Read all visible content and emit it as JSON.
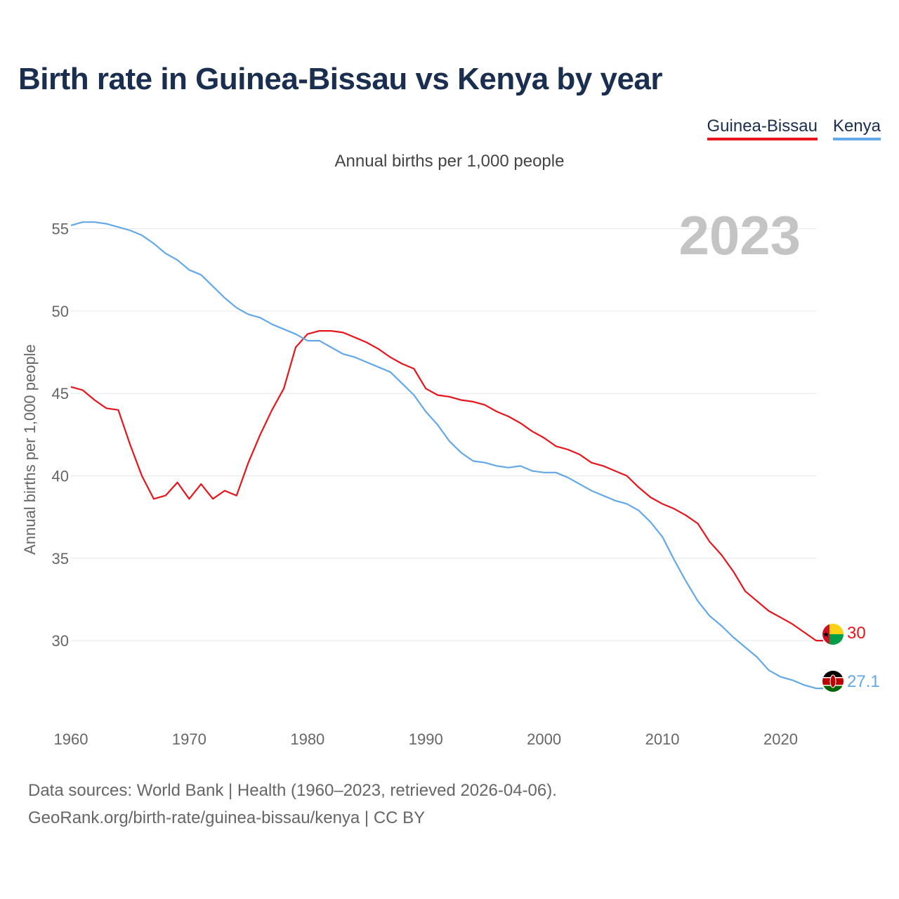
{
  "title": "Birth rate in Guinea-Bissau vs Kenya by year",
  "subtitle": "Annual births per 1,000 people",
  "year_watermark": "2023",
  "legend": [
    {
      "name": "Guinea-Bissau",
      "color": "#e8141c"
    },
    {
      "name": "Kenya",
      "color": "#63a8e8"
    }
  ],
  "source": {
    "line1": "Data sources: World Bank | Health (1960–2023, retrieved 2026-04-06).",
    "line2": "GeoRank.org/birth-rate/guinea-bissau/kenya | CC BY"
  },
  "chart_data": {
    "type": "line",
    "title": "Birth rate in Guinea-Bissau vs Kenya by year",
    "xlabel": "",
    "ylabel": "Annual births per 1,000 people",
    "xlim": [
      1960,
      2023
    ],
    "ylim": [
      25.4,
      57.2
    ],
    "x_ticks": [
      1960,
      1970,
      1980,
      1990,
      2000,
      2010,
      2020
    ],
    "y_ticks": [
      30,
      35,
      40,
      45,
      50,
      55
    ],
    "grid": true,
    "x": [
      1960,
      1961,
      1962,
      1963,
      1964,
      1965,
      1966,
      1967,
      1968,
      1969,
      1970,
      1971,
      1972,
      1973,
      1974,
      1975,
      1976,
      1977,
      1978,
      1979,
      1980,
      1981,
      1982,
      1983,
      1984,
      1985,
      1986,
      1987,
      1988,
      1989,
      1990,
      1991,
      1992,
      1993,
      1994,
      1995,
      1996,
      1997,
      1998,
      1999,
      2000,
      2001,
      2002,
      2003,
      2004,
      2005,
      2006,
      2007,
      2008,
      2009,
      2010,
      2011,
      2012,
      2013,
      2014,
      2015,
      2016,
      2017,
      2018,
      2019,
      2020,
      2021,
      2022,
      2023
    ],
    "series": [
      {
        "name": "Guinea-Bissau",
        "color": "#e8141c",
        "end_label": "30",
        "flag": "guinea-bissau-flag",
        "values": [
          45.4,
          45.2,
          44.6,
          44.1,
          44.0,
          41.9,
          40.0,
          38.6,
          38.8,
          39.6,
          38.6,
          39.5,
          38.6,
          39.1,
          38.8,
          40.8,
          42.5,
          44.0,
          45.3,
          47.8,
          48.6,
          48.8,
          48.8,
          48.7,
          48.4,
          48.1,
          47.7,
          47.2,
          46.8,
          46.5,
          45.3,
          44.9,
          44.8,
          44.6,
          44.5,
          44.3,
          43.9,
          43.6,
          43.2,
          42.7,
          42.3,
          41.8,
          41.6,
          41.3,
          40.8,
          40.6,
          40.3,
          40.0,
          39.3,
          38.7,
          38.3,
          38.0,
          37.6,
          37.1,
          36.0,
          35.2,
          34.2,
          33.0,
          32.4,
          31.8,
          31.4,
          31.0,
          30.5,
          30.0
        ]
      },
      {
        "name": "Kenya",
        "color": "#63a8e8",
        "end_label": "27.1",
        "flag": "kenya-flag",
        "values": [
          55.2,
          55.4,
          55.4,
          55.3,
          55.1,
          54.9,
          54.6,
          54.1,
          53.5,
          53.1,
          52.5,
          52.2,
          51.5,
          50.8,
          50.2,
          49.8,
          49.6,
          49.2,
          48.9,
          48.6,
          48.2,
          48.2,
          47.8,
          47.4,
          47.2,
          46.9,
          46.6,
          46.3,
          45.6,
          44.9,
          43.9,
          43.1,
          42.1,
          41.4,
          40.9,
          40.8,
          40.6,
          40.5,
          40.6,
          40.3,
          40.2,
          40.2,
          39.9,
          39.5,
          39.1,
          38.8,
          38.5,
          38.3,
          37.9,
          37.2,
          36.3,
          34.9,
          33.6,
          32.4,
          31.5,
          30.9,
          30.2,
          29.6,
          29.0,
          28.2,
          27.8,
          27.6,
          27.3,
          27.1
        ]
      }
    ]
  }
}
